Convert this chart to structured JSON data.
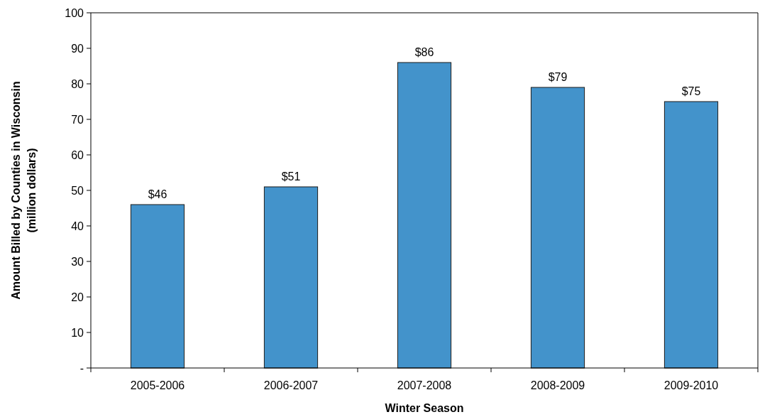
{
  "chart_data": {
    "type": "bar",
    "xlabel": "Winter Season",
    "ylabel": "Amount Billed by Counties in Wisconsin\n(million dollars)",
    "categories": [
      "2005-2006",
      "2006-2007",
      "2007-2008",
      "2008-2009",
      "2009-2010"
    ],
    "values": [
      46,
      51,
      86,
      79,
      75
    ],
    "value_labels": [
      "$46",
      "$51",
      "$86",
      "$79",
      "$75"
    ],
    "color": "#4393cb",
    "ylim": [
      0,
      100
    ],
    "yticks": [
      {
        "value": 0,
        "label": "-"
      },
      10,
      20,
      30,
      40,
      50,
      60,
      70,
      80,
      90,
      100
    ],
    "grid": false
  }
}
